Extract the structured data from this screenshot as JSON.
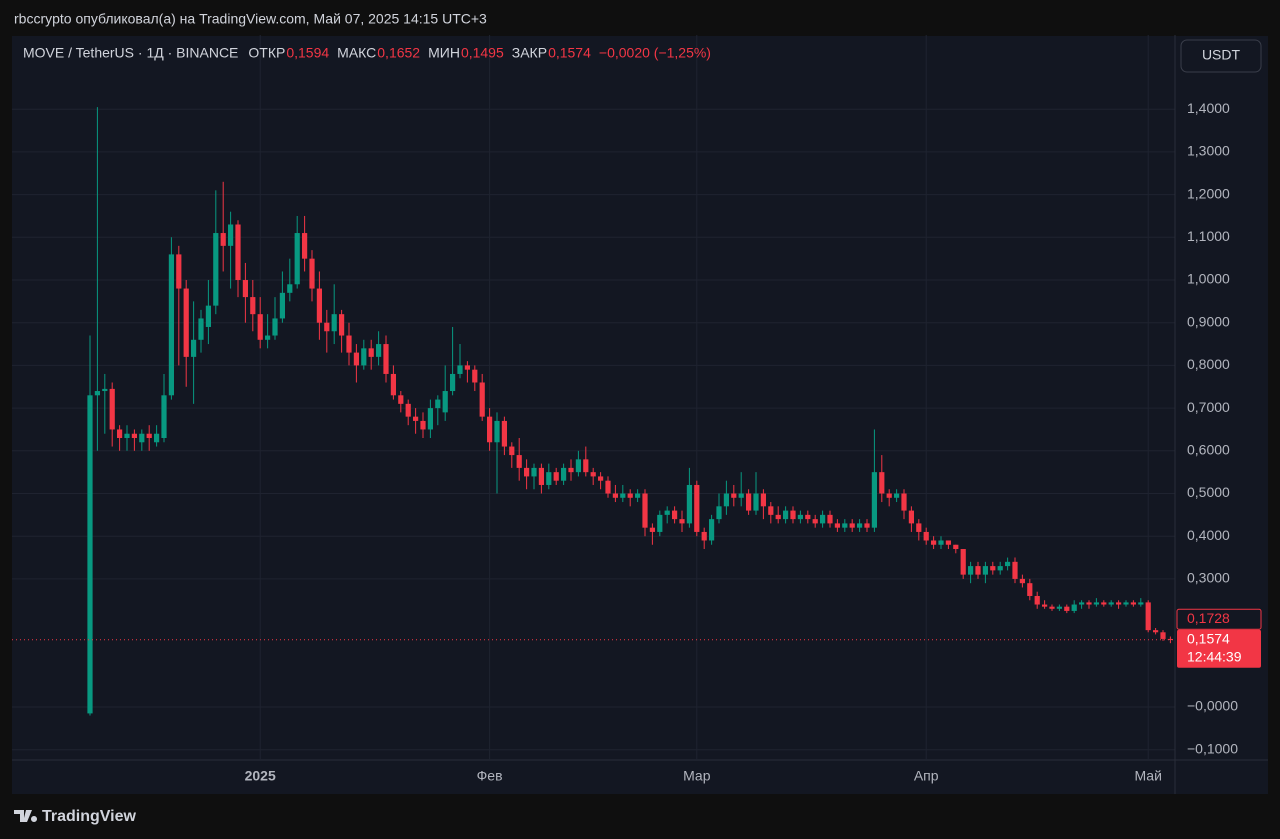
{
  "page": {
    "publisher": "rbccrypto опубликовал(а) на TradingView.com, Май 07, 2025 14:15 UTC+3",
    "symbol": "MOVE / TetherUS · 1Д · BINANCE",
    "fields": [
      {
        "label": "ОТКР",
        "value": "0,1594"
      },
      {
        "label": "МАКС",
        "value": "0,1652"
      },
      {
        "label": "МИН",
        "value": "0,1495"
      },
      {
        "label": "ЗАКР",
        "value": "0,1574"
      }
    ],
    "change": "−0,0020 (−1,25%)",
    "currency": "USDT",
    "countdown": "12:44:39",
    "footer": "TradingView"
  },
  "chart_data": {
    "type": "candlestick",
    "up_color": "#089981",
    "down_color": "#f23645",
    "grid": true,
    "categories": [
      null,
      null,
      null,
      null,
      null,
      null,
      null,
      null,
      null,
      null,
      null,
      null,
      null,
      null,
      null,
      null,
      null,
      null,
      null,
      null,
      null,
      null,
      null,
      "2025",
      null,
      null,
      null,
      null,
      null,
      null,
      null,
      null,
      null,
      null,
      null,
      null,
      null,
      null,
      null,
      null,
      null,
      null,
      null,
      null,
      null,
      null,
      null,
      null,
      null,
      null,
      null,
      null,
      null,
      null,
      "Фев",
      null,
      null,
      null,
      null,
      null,
      null,
      null,
      null,
      null,
      null,
      null,
      null,
      null,
      null,
      null,
      null,
      null,
      null,
      null,
      null,
      null,
      null,
      null,
      null,
      null,
      null,
      null,
      "Мар",
      null,
      null,
      null,
      null,
      null,
      null,
      null,
      null,
      null,
      null,
      null,
      null,
      null,
      null,
      null,
      null,
      null,
      null,
      null,
      null,
      null,
      null,
      null,
      null,
      null,
      null,
      null,
      null,
      null,
      null,
      "Апр",
      null,
      null,
      null,
      null,
      null,
      null,
      null,
      null,
      null,
      null,
      null,
      null,
      null,
      null,
      null,
      null,
      null,
      null,
      null,
      null,
      null,
      null,
      null,
      null,
      null,
      null,
      null,
      null,
      null,
      "Май",
      null,
      null,
      null
    ],
    "open": [
      -0.015,
      0.73,
      0.74,
      0.745,
      0.65,
      0.63,
      0.64,
      0.62,
      0.64,
      0.62,
      0.63,
      0.73,
      1.06,
      0.98,
      0.82,
      0.86,
      0.89,
      0.94,
      1.11,
      1.08,
      1.13,
      1.0,
      0.96,
      0.92,
      0.86,
      0.87,
      0.91,
      0.97,
      0.99,
      1.11,
      1.05,
      0.98,
      0.9,
      0.88,
      0.92,
      0.87,
      0.83,
      0.8,
      0.84,
      0.82,
      0.85,
      0.78,
      0.73,
      0.71,
      0.68,
      0.67,
      0.65,
      0.7,
      0.69,
      0.74,
      0.78,
      0.8,
      0.79,
      0.76,
      0.68,
      0.62,
      0.67,
      0.61,
      0.59,
      0.56,
      0.54,
      0.56,
      0.52,
      0.55,
      0.53,
      0.56,
      0.55,
      0.58,
      0.55,
      0.54,
      0.53,
      0.5,
      0.49,
      0.5,
      0.49,
      0.5,
      0.42,
      0.41,
      0.45,
      0.46,
      0.44,
      0.43,
      0.52,
      0.41,
      0.39,
      0.44,
      0.47,
      0.5,
      0.49,
      0.5,
      0.46,
      0.5,
      0.47,
      0.45,
      0.44,
      0.46,
      0.44,
      0.45,
      0.44,
      0.43,
      0.45,
      0.43,
      0.42,
      0.43,
      0.42,
      0.43,
      0.42,
      0.55,
      0.5,
      0.49,
      0.5,
      0.46,
      0.43,
      0.41,
      0.39,
      0.38,
      0.39,
      0.38,
      0.37,
      0.31,
      0.33,
      0.31,
      0.33,
      0.32,
      0.33,
      0.34,
      0.3,
      0.29,
      0.26,
      0.24,
      0.235,
      0.23,
      0.235,
      0.225,
      0.24,
      0.245,
      0.24,
      0.245,
      0.24,
      0.245,
      0.24,
      0.245,
      0.24,
      0.245,
      0.18,
      0.175,
      0.1594
    ],
    "high": [
      0.87,
      1.405,
      0.78,
      0.76,
      0.66,
      0.66,
      0.65,
      0.65,
      0.66,
      0.66,
      0.78,
      1.1,
      1.08,
      1.0,
      0.95,
      0.93,
      1.0,
      1.21,
      1.23,
      1.16,
      1.14,
      1.04,
      1.0,
      0.96,
      0.92,
      0.96,
      1.02,
      1.05,
      1.15,
      1.15,
      1.07,
      1.02,
      0.93,
      0.99,
      0.93,
      0.9,
      0.85,
      0.86,
      0.86,
      0.88,
      0.87,
      0.8,
      0.74,
      0.72,
      0.7,
      0.69,
      0.72,
      0.73,
      0.8,
      0.89,
      0.85,
      0.81,
      0.8,
      0.78,
      0.7,
      0.69,
      0.68,
      0.62,
      0.63,
      0.58,
      0.57,
      0.57,
      0.57,
      0.56,
      0.57,
      0.58,
      0.6,
      0.61,
      0.56,
      0.55,
      0.54,
      0.52,
      0.52,
      0.51,
      0.51,
      0.51,
      0.43,
      0.46,
      0.47,
      0.47,
      0.46,
      0.56,
      0.53,
      0.42,
      0.45,
      0.5,
      0.53,
      0.52,
      0.55,
      0.51,
      0.55,
      0.51,
      0.48,
      0.47,
      0.47,
      0.47,
      0.46,
      0.46,
      0.45,
      0.46,
      0.46,
      0.44,
      0.44,
      0.44,
      0.44,
      0.44,
      0.65,
      0.59,
      0.51,
      0.51,
      0.51,
      0.47,
      0.44,
      0.42,
      0.4,
      0.4,
      0.39,
      0.38,
      0.37,
      0.34,
      0.34,
      0.34,
      0.34,
      0.34,
      0.35,
      0.35,
      0.31,
      0.3,
      0.27,
      0.25,
      0.24,
      0.24,
      0.24,
      0.25,
      0.25,
      0.25,
      0.255,
      0.25,
      0.25,
      0.25,
      0.25,
      0.25,
      0.255,
      0.25,
      0.185,
      0.18,
      0.1652
    ],
    "low": [
      -0.02,
      0.6,
      0.64,
      0.61,
      0.6,
      0.6,
      0.6,
      0.6,
      0.6,
      0.61,
      0.62,
      0.72,
      0.8,
      0.75,
      0.71,
      0.83,
      0.85,
      0.92,
      1.02,
      0.98,
      0.96,
      0.9,
      0.88,
      0.84,
      0.84,
      0.86,
      0.9,
      0.95,
      0.98,
      1.02,
      0.95,
      0.86,
      0.83,
      0.85,
      0.83,
      0.8,
      0.76,
      0.79,
      0.79,
      0.8,
      0.76,
      0.72,
      0.69,
      0.66,
      0.64,
      0.63,
      0.63,
      0.66,
      0.67,
      0.73,
      0.77,
      0.76,
      0.74,
      0.67,
      0.6,
      0.5,
      0.59,
      0.56,
      0.53,
      0.51,
      0.51,
      0.5,
      0.51,
      0.52,
      0.52,
      0.53,
      0.54,
      0.54,
      0.52,
      0.51,
      0.49,
      0.48,
      0.48,
      0.47,
      0.48,
      0.4,
      0.38,
      0.4,
      0.43,
      0.43,
      0.41,
      0.42,
      0.4,
      0.37,
      0.38,
      0.43,
      0.45,
      0.47,
      0.47,
      0.45,
      0.45,
      0.44,
      0.43,
      0.43,
      0.43,
      0.43,
      0.43,
      0.43,
      0.42,
      0.42,
      0.42,
      0.41,
      0.41,
      0.41,
      0.41,
      0.41,
      0.41,
      0.48,
      0.47,
      0.48,
      0.44,
      0.41,
      0.39,
      0.38,
      0.37,
      0.37,
      0.37,
      0.36,
      0.3,
      0.29,
      0.3,
      0.29,
      0.31,
      0.31,
      0.32,
      0.29,
      0.28,
      0.25,
      0.23,
      0.23,
      0.225,
      0.225,
      0.22,
      0.22,
      0.23,
      0.23,
      0.235,
      0.235,
      0.235,
      0.23,
      0.235,
      0.235,
      0.235,
      0.175,
      0.17,
      0.155,
      0.1495
    ],
    "close": [
      0.73,
      0.74,
      0.745,
      0.65,
      0.63,
      0.64,
      0.63,
      0.64,
      0.63,
      0.64,
      0.73,
      1.06,
      0.98,
      0.82,
      0.86,
      0.91,
      0.94,
      1.11,
      1.08,
      1.13,
      1.0,
      0.96,
      0.92,
      0.86,
      0.87,
      0.91,
      0.97,
      0.99,
      1.11,
      1.05,
      0.98,
      0.9,
      0.88,
      0.92,
      0.87,
      0.83,
      0.8,
      0.84,
      0.82,
      0.85,
      0.78,
      0.73,
      0.71,
      0.68,
      0.67,
      0.65,
      0.7,
      0.72,
      0.74,
      0.78,
      0.8,
      0.79,
      0.76,
      0.68,
      0.62,
      0.67,
      0.61,
      0.59,
      0.56,
      0.54,
      0.56,
      0.52,
      0.55,
      0.53,
      0.56,
      0.55,
      0.58,
      0.55,
      0.54,
      0.53,
      0.5,
      0.49,
      0.5,
      0.49,
      0.5,
      0.42,
      0.41,
      0.45,
      0.46,
      0.44,
      0.43,
      0.52,
      0.41,
      0.39,
      0.44,
      0.47,
      0.5,
      0.49,
      0.5,
      0.46,
      0.5,
      0.47,
      0.45,
      0.44,
      0.46,
      0.44,
      0.45,
      0.44,
      0.43,
      0.45,
      0.43,
      0.42,
      0.43,
      0.42,
      0.43,
      0.42,
      0.55,
      0.5,
      0.49,
      0.5,
      0.46,
      0.43,
      0.41,
      0.39,
      0.38,
      0.39,
      0.38,
      0.37,
      0.31,
      0.33,
      0.31,
      0.33,
      0.32,
      0.33,
      0.34,
      0.3,
      0.29,
      0.26,
      0.24,
      0.235,
      0.23,
      0.235,
      0.225,
      0.24,
      0.245,
      0.24,
      0.245,
      0.24,
      0.245,
      0.24,
      0.245,
      0.24,
      0.245,
      0.18,
      0.175,
      0.1594,
      0.1574
    ],
    "ylim": [
      -0.1241,
      1.5738
    ],
    "yticks": [
      {
        "value": 1.4,
        "label": "1,4000"
      },
      {
        "value": 1.3,
        "label": "1,3000"
      },
      {
        "value": 1.2,
        "label": "1,2000"
      },
      {
        "value": 1.1,
        "label": "1,1000"
      },
      {
        "value": 1.0,
        "label": "1,0000"
      },
      {
        "value": 0.9,
        "label": "0,9000"
      },
      {
        "value": 0.8,
        "label": "0,8000"
      },
      {
        "value": 0.7,
        "label": "0,7000"
      },
      {
        "value": 0.6,
        "label": "0,6000"
      },
      {
        "value": 0.5,
        "label": "0,5000"
      },
      {
        "value": 0.4,
        "label": "0,4000"
      },
      {
        "value": 0.3,
        "label": "0,3000"
      },
      {
        "value": 0,
        "label": "−0,0000"
      },
      {
        "value": -0.1,
        "label": "−0,1000"
      }
    ],
    "price_lines": [
      {
        "value": 0.1728,
        "label": "0,1728"
      },
      {
        "value": 0.1574,
        "label": "0,1574"
      }
    ]
  }
}
